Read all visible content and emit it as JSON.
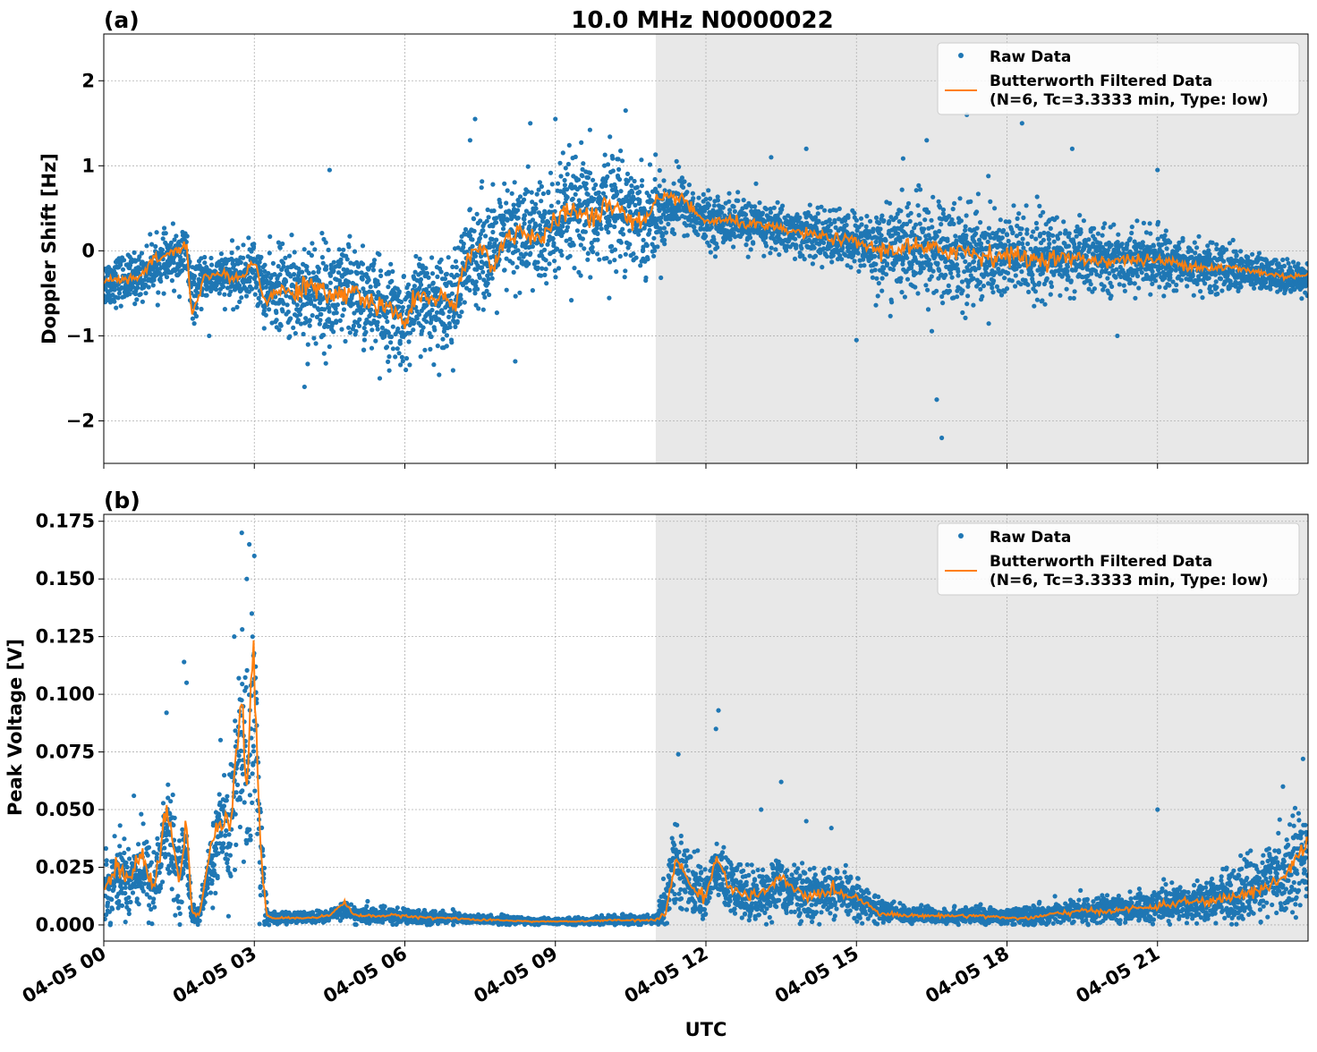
{
  "figure": {
    "title": "10.0 MHz N0000022",
    "xlabel": "UTC"
  },
  "colors": {
    "raw": "#1f77b4",
    "filtered": "#ff7f0e",
    "shade": "#e8e8e8",
    "grid": "#b0b0b0"
  },
  "chart_data": [
    {
      "type": "line",
      "panel_label": "(a)",
      "title": "10.0 MHz N0000022",
      "ylabel": "Doppler Shift [Hz]",
      "xlabel": "",
      "xlim": [
        0,
        24
      ],
      "ylim": [
        -2.5,
        2.55
      ],
      "y_ticks": [
        -2,
        -1,
        0,
        1,
        2
      ],
      "y_tick_labels": [
        "−2",
        "−1",
        "0",
        "1",
        "2"
      ],
      "x_ticks": [
        0,
        3,
        6,
        9,
        12,
        15,
        18,
        21
      ],
      "shaded_interval": [
        11,
        24
      ],
      "grid": true,
      "legend": "top-right",
      "legend_entries": {
        "raw": "Raw Data",
        "filtered_line1": "Butterworth Filtered Data",
        "filtered_line2": "(N=6, Tc=3.3333 min, Type: low)"
      },
      "series": [
        {
          "name": "Butterworth Filtered Data",
          "kind": "filtered",
          "x": [
            0,
            0.25,
            0.5,
            0.75,
            1,
            1.25,
            1.5,
            1.65,
            1.75,
            1.85,
            2,
            2.25,
            2.5,
            2.75,
            3,
            3.1,
            3.25,
            3.5,
            3.75,
            4,
            4.25,
            4.5,
            4.75,
            5,
            5.25,
            5.5,
            5.75,
            6,
            6.25,
            6.5,
            6.75,
            7,
            7.25,
            7.5,
            7.75,
            8,
            8.25,
            8.5,
            8.75,
            9,
            9.25,
            9.5,
            9.75,
            10,
            10.25,
            10.5,
            10.75,
            11,
            11.25,
            11.5,
            11.75,
            12,
            12.5,
            13,
            13.5,
            14,
            14.5,
            15,
            15.5,
            16,
            16.5,
            17,
            17.5,
            18,
            18.5,
            19,
            19.5,
            20,
            20.5,
            21,
            21.5,
            22,
            22.5,
            23,
            23.5,
            24
          ],
          "y": [
            -0.38,
            -0.32,
            -0.35,
            -0.3,
            -0.1,
            -0.05,
            0.0,
            0.1,
            -0.75,
            -0.6,
            -0.3,
            -0.28,
            -0.3,
            -0.32,
            -0.1,
            -0.35,
            -0.6,
            -0.45,
            -0.5,
            -0.4,
            -0.45,
            -0.55,
            -0.5,
            -0.45,
            -0.6,
            -0.65,
            -0.7,
            -0.85,
            -0.5,
            -0.6,
            -0.55,
            -0.65,
            -0.1,
            0.05,
            -0.15,
            0.1,
            0.25,
            0.2,
            0.15,
            0.3,
            0.5,
            0.45,
            0.35,
            0.55,
            0.5,
            0.4,
            0.3,
            0.55,
            0.6,
            0.65,
            0.45,
            0.35,
            0.35,
            0.3,
            0.25,
            0.2,
            0.15,
            0.1,
            0.0,
            0.05,
            0.0,
            0.02,
            -0.05,
            -0.05,
            -0.1,
            -0.08,
            -0.1,
            -0.12,
            -0.1,
            -0.12,
            -0.15,
            -0.2,
            -0.2,
            -0.25,
            -0.3,
            -0.28
          ]
        },
        {
          "name": "Raw Data",
          "kind": "raw",
          "x": [
            0,
            1,
            1.7,
            2,
            3,
            4,
            5,
            6,
            6.3,
            7,
            7.4,
            8,
            9,
            10,
            10.5,
            11,
            11.5,
            12,
            13,
            14,
            15,
            15.8,
            16.5,
            17,
            18,
            19,
            20,
            21,
            22,
            23,
            24
          ],
          "y": [
            -0.4,
            -0.25,
            -0.2,
            -0.35,
            -0.3,
            -0.55,
            -0.55,
            -0.85,
            -0.7,
            -0.55,
            0.0,
            0.2,
            0.2,
            0.5,
            0.6,
            0.25,
            0.5,
            0.35,
            0.3,
            0.2,
            0.1,
            0.0,
            0.0,
            -0.05,
            -0.1,
            -0.05,
            -0.1,
            -0.1,
            -0.2,
            -0.3,
            -0.35
          ],
          "spread": [
            0.25,
            0.25,
            0.3,
            0.2,
            0.3,
            0.55,
            0.55,
            0.45,
            0.45,
            0.5,
            0.55,
            0.55,
            0.6,
            0.6,
            0.55,
            0.45,
            0.3,
            0.25,
            0.25,
            0.25,
            0.3,
            0.5,
            0.55,
            0.55,
            0.5,
            0.4,
            0.3,
            0.3,
            0.25,
            0.2,
            0.15
          ],
          "outliers": [
            [
              2.1,
              -1.0
            ],
            [
              4.0,
              -1.6
            ],
            [
              4.5,
              0.95
            ],
            [
              5.5,
              -1.5
            ],
            [
              7.4,
              1.55
            ],
            [
              7.3,
              1.3
            ],
            [
              8.2,
              -1.3
            ],
            [
              8.5,
              1.5
            ],
            [
              9.0,
              1.55
            ],
            [
              10.4,
              1.65
            ],
            [
              13.3,
              1.1
            ],
            [
              14.0,
              1.2
            ],
            [
              16.7,
              -2.2
            ],
            [
              16.6,
              -1.75
            ],
            [
              17.2,
              1.6
            ],
            [
              18.3,
              1.5
            ],
            [
              19.3,
              1.2
            ],
            [
              21.0,
              0.95
            ],
            [
              16.4,
              1.3
            ],
            [
              20.2,
              -1.0
            ],
            [
              15.0,
              -1.05
            ]
          ]
        }
      ]
    },
    {
      "type": "line",
      "panel_label": "(b)",
      "title": "",
      "ylabel": "Peak Voltage [V]",
      "xlabel": "UTC",
      "xlim": [
        0,
        24
      ],
      "ylim": [
        -0.007,
        0.178
      ],
      "y_ticks": [
        0.0,
        0.025,
        0.05,
        0.075,
        0.1,
        0.125,
        0.15,
        0.175
      ],
      "y_tick_labels": [
        "0.000",
        "0.025",
        "0.050",
        "0.075",
        "0.100",
        "0.125",
        "0.150",
        "0.175"
      ],
      "x_ticks": [
        0,
        3,
        6,
        9,
        12,
        15,
        18,
        21
      ],
      "x_tick_labels": [
        "04-05 00",
        "04-05 03",
        "04-05 06",
        "04-05 09",
        "04-05 12",
        "04-05 15",
        "04-05 18",
        "04-05 21"
      ],
      "shaded_interval": [
        11,
        24
      ],
      "grid": true,
      "legend": "top-right",
      "legend_entries": {
        "raw": "Raw Data",
        "filtered_line1": "Butterworth Filtered Data",
        "filtered_line2": "(N=6, Tc=3.3333 min, Type: low)"
      },
      "series": [
        {
          "name": "Butterworth Filtered Data",
          "kind": "filtered",
          "x": [
            0,
            0.25,
            0.5,
            0.75,
            1,
            1.25,
            1.5,
            1.65,
            1.75,
            1.9,
            2.1,
            2.3,
            2.5,
            2.65,
            2.75,
            2.85,
            3.0,
            3.1,
            3.25,
            3.5,
            4,
            4.5,
            4.8,
            5,
            5.5,
            6,
            6.5,
            7,
            7.5,
            8,
            8.5,
            9,
            9.5,
            10,
            10.5,
            11,
            11.2,
            11.4,
            11.6,
            11.8,
            12,
            12.2,
            12.5,
            13,
            13.5,
            14,
            14.5,
            15,
            15.5,
            16,
            16.5,
            17,
            17.5,
            18,
            18.5,
            19,
            19.5,
            20,
            20.5,
            21,
            21.5,
            22,
            22.5,
            23,
            23.5,
            23.8,
            24
          ],
          "y": [
            0.015,
            0.025,
            0.02,
            0.03,
            0.015,
            0.05,
            0.02,
            0.045,
            0.005,
            0.004,
            0.03,
            0.045,
            0.04,
            0.08,
            0.1,
            0.06,
            0.12,
            0.04,
            0.003,
            0.003,
            0.003,
            0.004,
            0.01,
            0.004,
            0.004,
            0.004,
            0.003,
            0.003,
            0.002,
            0.002,
            0.0015,
            0.0015,
            0.0015,
            0.002,
            0.002,
            0.002,
            0.005,
            0.03,
            0.02,
            0.015,
            0.012,
            0.03,
            0.015,
            0.012,
            0.02,
            0.012,
            0.015,
            0.012,
            0.005,
            0.004,
            0.004,
            0.004,
            0.004,
            0.003,
            0.003,
            0.005,
            0.006,
            0.006,
            0.007,
            0.008,
            0.01,
            0.01,
            0.012,
            0.015,
            0.02,
            0.03,
            0.035
          ]
        },
        {
          "name": "Raw Data",
          "kind": "raw",
          "x": [
            0,
            0.5,
            1,
            1.2,
            1.5,
            1.7,
            1.8,
            2,
            2.3,
            2.6,
            2.8,
            3.0,
            3.15,
            3.3,
            4,
            5,
            6,
            7,
            8,
            9,
            10,
            11,
            11.3,
            11.6,
            12,
            12.5,
            13,
            14,
            15,
            15.3,
            16,
            17,
            18,
            19,
            20,
            21,
            22,
            23,
            23.5,
            24
          ],
          "y": [
            0.015,
            0.02,
            0.018,
            0.03,
            0.025,
            0.01,
            0.003,
            0.005,
            0.03,
            0.045,
            0.06,
            0.07,
            0.02,
            0.003,
            0.003,
            0.004,
            0.004,
            0.003,
            0.002,
            0.0015,
            0.002,
            0.003,
            0.025,
            0.02,
            0.015,
            0.016,
            0.014,
            0.013,
            0.012,
            0.008,
            0.005,
            0.004,
            0.004,
            0.006,
            0.007,
            0.009,
            0.012,
            0.018,
            0.025,
            0.03
          ],
          "spread": [
            0.012,
            0.015,
            0.015,
            0.02,
            0.015,
            0.008,
            0.003,
            0.006,
            0.02,
            0.03,
            0.04,
            0.05,
            0.02,
            0.002,
            0.002,
            0.003,
            0.003,
            0.002,
            0.0015,
            0.001,
            0.0015,
            0.002,
            0.015,
            0.012,
            0.01,
            0.012,
            0.01,
            0.01,
            0.008,
            0.005,
            0.003,
            0.003,
            0.003,
            0.004,
            0.005,
            0.006,
            0.008,
            0.012,
            0.016,
            0.02
          ],
          "outliers": [
            [
              1.25,
              0.092
            ],
            [
              1.6,
              0.114
            ],
            [
              1.65,
              0.105
            ],
            [
              2.75,
              0.17
            ],
            [
              2.9,
              0.165
            ],
            [
              3.0,
              0.16
            ],
            [
              2.85,
              0.15
            ],
            [
              11.45,
              0.074
            ],
            [
              12.25,
              0.093
            ],
            [
              12.2,
              0.085
            ],
            [
              13.5,
              0.062
            ],
            [
              13.1,
              0.05
            ],
            [
              14.5,
              0.042
            ],
            [
              14.0,
              0.045
            ],
            [
              21.0,
              0.05
            ],
            [
              23.9,
              0.072
            ],
            [
              23.5,
              0.06
            ],
            [
              0.6,
              0.056
            ],
            [
              2.95,
              0.135
            ],
            [
              2.6,
              0.125
            ]
          ]
        }
      ]
    }
  ]
}
